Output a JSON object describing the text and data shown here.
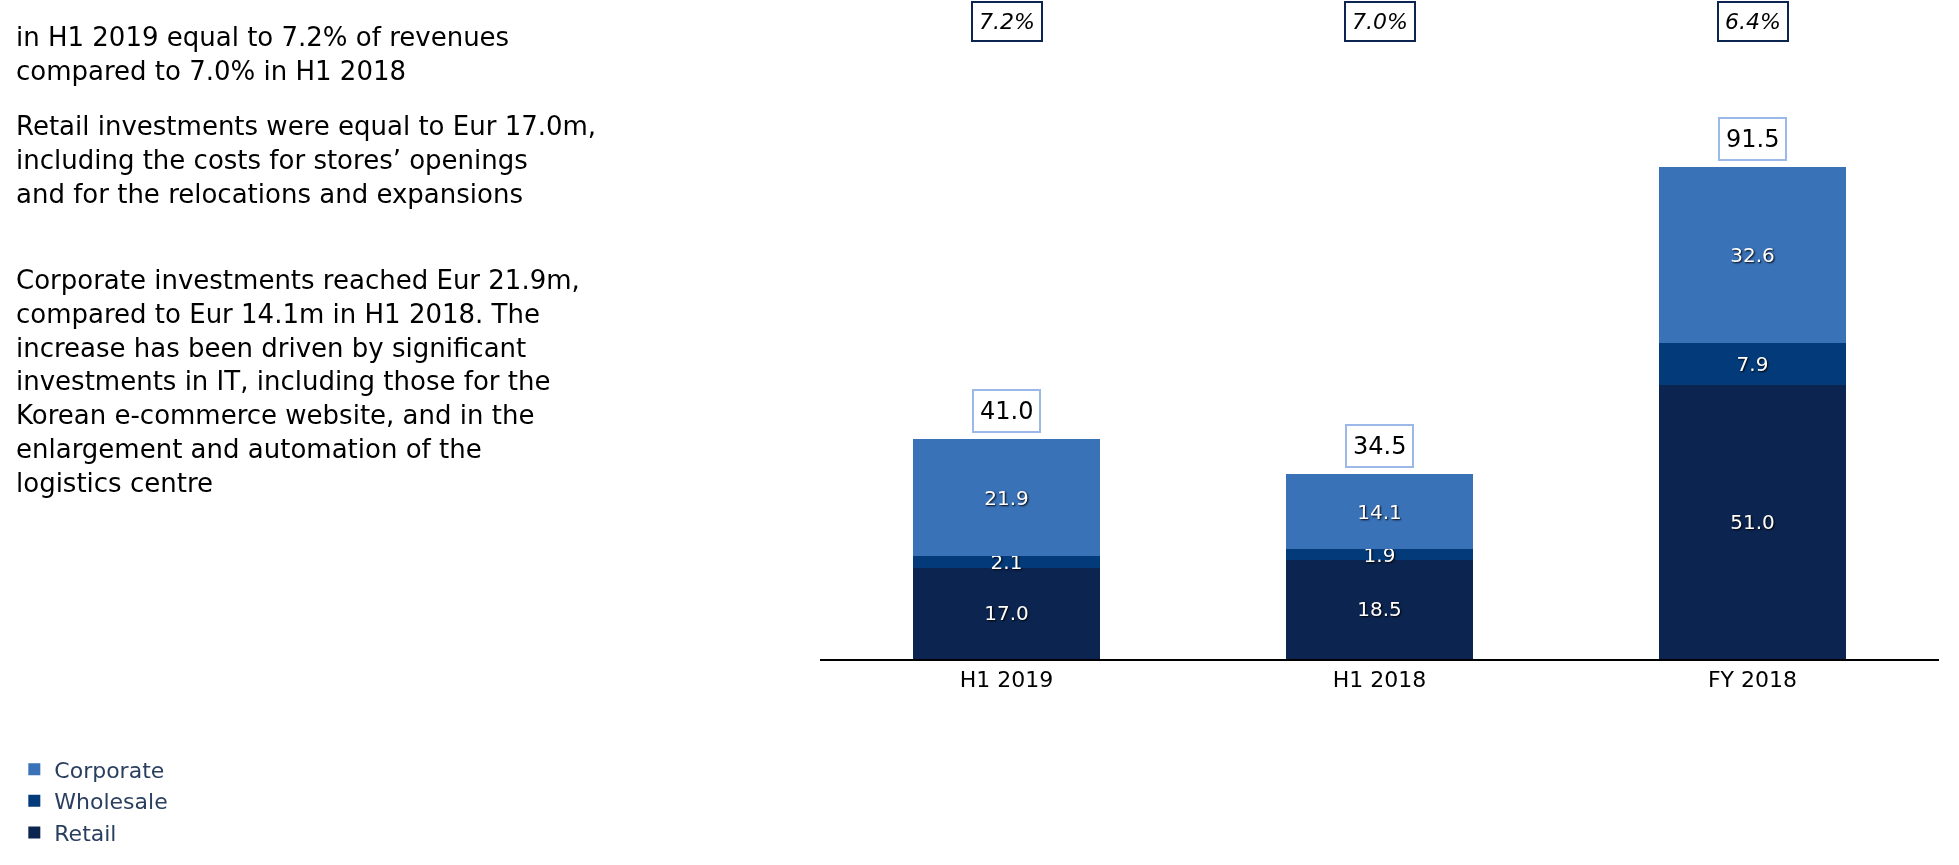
{
  "chart_data": {
    "type": "bar",
    "stacked": true,
    "categories": [
      "H1 2019",
      "H1 2018",
      "FY 2018"
    ],
    "series": [
      {
        "name": "Retail",
        "color": "#0c2550",
        "values": [
          17.0,
          18.5,
          51.0
        ],
        "value_labels": [
          "17.0",
          "18.5",
          "51.0"
        ]
      },
      {
        "name": "Wholesale",
        "color": "#033b7a",
        "values": [
          2.1,
          1.9,
          7.9
        ],
        "value_labels": [
          "2.1",
          "1.9",
          "7.9"
        ]
      },
      {
        "name": "Corporate",
        "color": "#3a72b8",
        "values": [
          21.9,
          14.1,
          32.6
        ],
        "value_labels": [
          "21.9",
          "14.1",
          "32.6"
        ]
      }
    ],
    "totals": [
      "41.0",
      "34.5",
      "91.5"
    ],
    "legend": "bottom left",
    "annotations": [
      "in H1 2019 equal to 7.2% of revenues\ncompared to 7.0% in H1 2018",
      "Retail investments were equal to Eur 17.0m,\nincluding the costs for stores’ openings\nand for the relocations and expansions",
      "Corporate investments reached Eur 21.9m,\ncompared to Eur 14.1m in H1 2018. The\nincrease has been driven by significant\ninvestments in IT, including those for the\nKorean e-commerce website, and in the\nenlargement and automation of the\nlogistics centre",
      "7.2%",
      "7.0%",
      "6.4%"
    ]
  }
}
